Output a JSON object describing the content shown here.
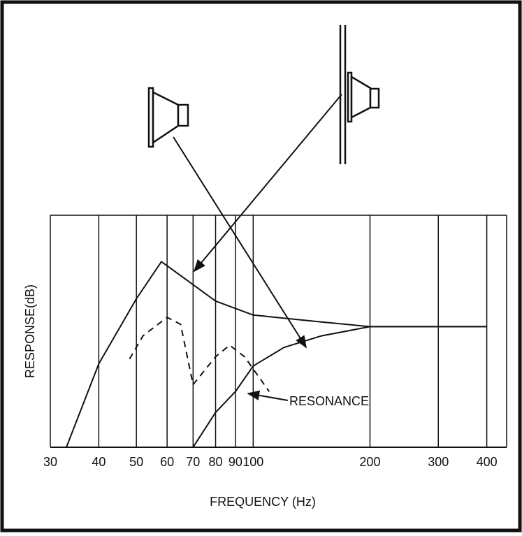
{
  "chart_data": {
    "type": "line",
    "xlabel": "FREQUENCY (Hz)",
    "ylabel": "RESPONSE(dB)",
    "xscale": "log",
    "xlim": [
      30,
      450
    ],
    "ylim": [
      0,
      100
    ],
    "xticks": [
      30,
      40,
      50,
      60,
      70,
      80,
      90,
      100,
      200,
      300,
      400
    ],
    "grid": true,
    "annotation": "RESONANCE",
    "series": [
      {
        "color": "#111111",
        "style": "solid",
        "x": [
          33,
          40,
          50,
          58,
          65,
          80,
          100,
          150,
          200,
          300,
          400
        ],
        "values": [
          0,
          36,
          64,
          80,
          74,
          63,
          57,
          54,
          52,
          52,
          52
        ]
      },
      {
        "color": "#111111",
        "style": "solid",
        "x": [
          70,
          80,
          90,
          100,
          120,
          150,
          200,
          300,
          400
        ],
        "values": [
          0,
          15,
          24,
          35,
          43,
          48,
          52,
          52,
          52
        ]
      },
      {
        "color": "#111111",
        "style": "dashed",
        "x": [
          48,
          52,
          60,
          65,
          70
        ],
        "values": [
          38,
          48,
          56,
          53,
          27
        ]
      },
      {
        "color": "#111111",
        "style": "dashed",
        "x": [
          70,
          80,
          87,
          95,
          110
        ],
        "values": [
          27,
          39,
          44,
          39,
          24
        ]
      }
    ]
  }
}
